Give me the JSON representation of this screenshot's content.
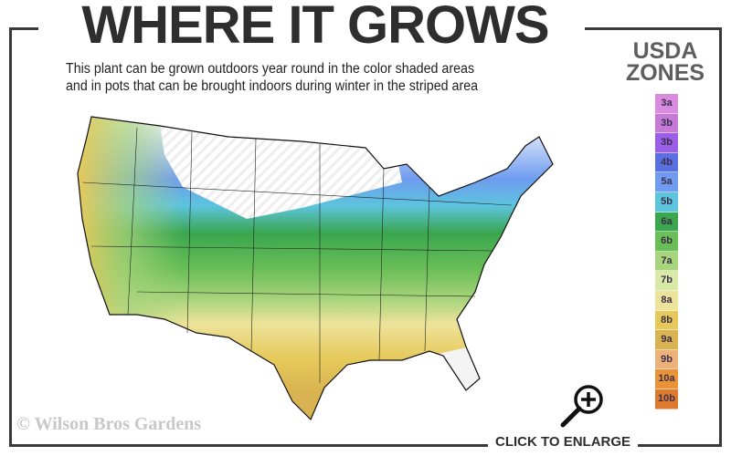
{
  "header": {
    "title": "WHERE IT GROWS",
    "subtitle_line1": "This plant can be grown outdoors year round in the color shaded areas",
    "subtitle_line2": "and in pots that can be brought indoors during winter in the striped area"
  },
  "legend": {
    "title_line1": "USDA",
    "title_line2": "ZONES",
    "zones": [
      {
        "label": "3a",
        "color": "#d98be0"
      },
      {
        "label": "3b",
        "color": "#c47ad6"
      },
      {
        "label": "3b",
        "color": "#9b5ee6"
      },
      {
        "label": "4b",
        "color": "#5a70e0"
      },
      {
        "label": "5a",
        "color": "#6f9cf0"
      },
      {
        "label": "5b",
        "color": "#5cc4dd"
      },
      {
        "label": "6a",
        "color": "#3aa64e"
      },
      {
        "label": "6b",
        "color": "#69be57"
      },
      {
        "label": "7a",
        "color": "#a8d47c"
      },
      {
        "label": "7b",
        "color": "#d8e9a8"
      },
      {
        "label": "8a",
        "color": "#ede39a"
      },
      {
        "label": "8b",
        "color": "#e6c95a"
      },
      {
        "label": "9a",
        "color": "#d9b351"
      },
      {
        "label": "9b",
        "color": "#edb27a"
      },
      {
        "label": "10a",
        "color": "#e99438"
      },
      {
        "label": "10b",
        "color": "#dd7a30"
      }
    ]
  },
  "footer": {
    "copyright": "© Wilson Bros Gardens",
    "enlarge_label": "CLICK TO ENLARGE",
    "enlarge_icon": "zoom-in-magnifier-icon"
  }
}
